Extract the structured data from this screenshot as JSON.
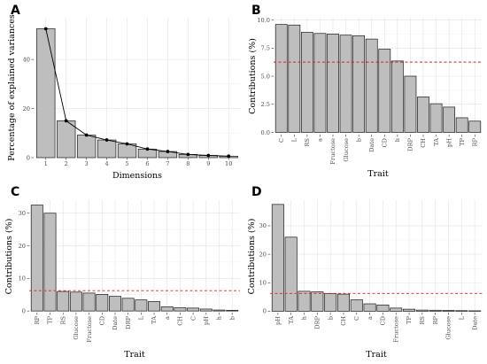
{
  "chart_data": [
    {
      "panel": "A",
      "type": "bar",
      "xlabel": "Dimensions",
      "ylabel": "Percentage of explained variances",
      "ylim": [
        0,
        57
      ],
      "yticks": [
        0,
        20,
        40
      ],
      "categories": [
        "1",
        "2",
        "3",
        "4",
        "5",
        "6",
        "7",
        "8",
        "9",
        "10"
      ],
      "values": [
        52.5,
        15.0,
        9.2,
        7.2,
        5.6,
        3.5,
        2.5,
        1.3,
        0.9,
        0.6
      ],
      "overlay_line": true,
      "grid": true
    },
    {
      "panel": "B",
      "type": "bar",
      "xlabel": "Trait",
      "ylabel": "Contributions (%)",
      "ylim": [
        -0.2,
        10.2
      ],
      "yticks": [
        0.0,
        2.5,
        5.0,
        7.5,
        10.0
      ],
      "ytick_labels": [
        "0.0",
        "2.5",
        "5.0",
        "7.5",
        "10.0"
      ],
      "categories": [
        "C",
        "L",
        "RS",
        "a",
        "Fructose",
        "Glucose",
        "b",
        "Date",
        "CD",
        "h",
        "DRP",
        "CH",
        "TA",
        "pH",
        "TP",
        "RP"
      ],
      "values": [
        9.6,
        9.55,
        8.9,
        8.8,
        8.75,
        8.65,
        8.6,
        8.3,
        7.4,
        6.35,
        5.0,
        3.15,
        2.55,
        2.25,
        1.3,
        1.0
      ],
      "reference_line": 6.25,
      "grid": true
    },
    {
      "panel": "C",
      "type": "bar",
      "xlabel": "Trait",
      "ylabel": "Contributions (%)",
      "ylim": [
        -0.5,
        34
      ],
      "yticks": [
        0,
        10,
        20,
        30
      ],
      "categories": [
        "RP",
        "TP",
        "RS",
        "Glucose",
        "Fructose",
        "CD",
        "Date",
        "DRP",
        "L",
        "TA",
        "a",
        "CH",
        "C",
        "pH",
        "h",
        "b"
      ],
      "values": [
        32.5,
        30.0,
        6.0,
        5.8,
        5.5,
        5.1,
        4.5,
        3.9,
        3.4,
        2.9,
        1.3,
        1.0,
        0.9,
        0.6,
        0.3,
        0.2
      ],
      "reference_line": 6.25,
      "grid": true
    },
    {
      "panel": "D",
      "type": "bar",
      "xlabel": "Trait",
      "ylabel": "Contributions (%)",
      "ylim": [
        -0.5,
        39
      ],
      "yticks": [
        0,
        10,
        20,
        30
      ],
      "categories": [
        "pH",
        "TA",
        "h",
        "DRP",
        "b",
        "CH",
        "C",
        "a",
        "CD",
        "Fructose",
        "TP",
        "RS",
        "RP",
        "Glucose",
        "L",
        "Date"
      ],
      "values": [
        37.5,
        26.0,
        7.0,
        6.8,
        6.2,
        6.0,
        4.0,
        2.6,
        2.2,
        1.1,
        0.7,
        0.4,
        0.35,
        0.3,
        0.2,
        0.15
      ],
      "reference_line": 6.25,
      "grid": true
    }
  ]
}
